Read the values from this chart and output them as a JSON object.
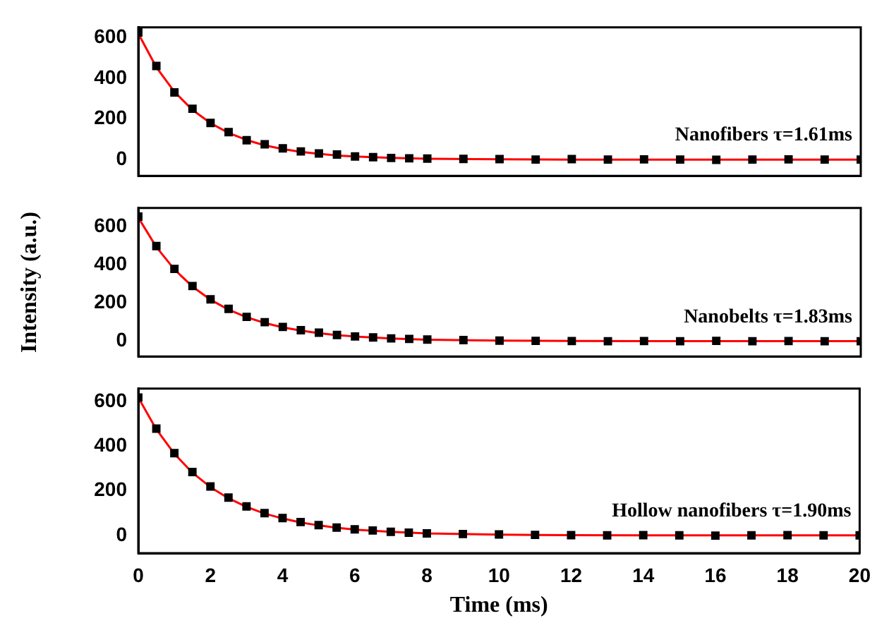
{
  "chart_data": [
    {
      "type": "scatter",
      "xlim": [
        0,
        20
      ],
      "xticks": [
        0,
        2,
        4,
        6,
        8,
        10,
        12,
        14,
        16,
        18,
        20
      ],
      "ylim": [
        -80,
        650
      ],
      "yticks": [
        0,
        200,
        400,
        600
      ],
      "tick_labels": "y",
      "annotations": [
        "Nanofibers τ=1.61ms"
      ],
      "series": [
        {
          "color": "#000000",
          "marker": "square",
          "x": [
            0,
            0.5,
            1,
            1.5,
            2,
            2.5,
            3,
            3.5,
            4,
            4.5,
            5,
            5.5,
            6,
            6.5,
            7,
            7.5,
            8,
            9,
            10,
            11,
            12,
            13,
            14,
            15,
            16,
            17,
            18,
            19,
            20
          ],
          "values": [
            625,
            460,
            330,
            250,
            180,
            135,
            95,
            75,
            55,
            40,
            30,
            25,
            15,
            12,
            8,
            6,
            5,
            3,
            2,
            0,
            2,
            0,
            1,
            0,
            -1,
            0,
            1,
            0,
            0
          ]
        },
        {
          "type": "line",
          "color": "#ff0000",
          "x": [
            0,
            0.5,
            1,
            1.5,
            2,
            2.5,
            3,
            3.5,
            4,
            4.5,
            5,
            5.5,
            6,
            7,
            8,
            10,
            12,
            14,
            16,
            18,
            20
          ],
          "values": [
            620,
            454,
            333,
            244,
            179,
            131,
            96,
            70,
            52,
            38,
            28,
            20,
            15,
            8,
            4,
            1,
            0,
            0,
            0,
            0,
            0
          ]
        }
      ]
    },
    {
      "type": "scatter",
      "xlim": [
        0,
        20
      ],
      "xticks": [
        0,
        2,
        4,
        6,
        8,
        10,
        12,
        14,
        16,
        18,
        20
      ],
      "ylim": [
        -80,
        700
      ],
      "yticks": [
        0,
        200,
        400,
        600
      ],
      "tick_labels": "y",
      "ylabel": "Intensity (a.u.)",
      "annotations": [
        "Nanobelts τ=1.83ms"
      ],
      "series": [
        {
          "color": "#000000",
          "marker": "square",
          "x": [
            0,
            0.5,
            1,
            1.5,
            2,
            2.5,
            3,
            3.5,
            4,
            4.5,
            5,
            5.5,
            6,
            6.5,
            7,
            7.5,
            8,
            9,
            10,
            11,
            12,
            13,
            14,
            15,
            16,
            17,
            18,
            19,
            20
          ],
          "values": [
            655,
            500,
            380,
            290,
            220,
            170,
            128,
            100,
            75,
            58,
            45,
            33,
            25,
            20,
            15,
            12,
            9,
            6,
            3,
            2,
            1,
            0,
            1,
            0,
            2,
            0,
            1,
            0,
            0
          ]
        },
        {
          "type": "line",
          "color": "#ff0000",
          "x": [
            0,
            0.5,
            1,
            1.5,
            2,
            2.5,
            3,
            3.5,
            4,
            4.5,
            5,
            5.5,
            6,
            7,
            8,
            10,
            12,
            14,
            16,
            18,
            20
          ],
          "values": [
            650,
            495,
            377,
            287,
            218,
            166,
            126,
            96,
            73,
            56,
            42,
            32,
            25,
            14,
            8,
            3,
            1,
            0,
            0,
            0,
            0
          ]
        }
      ]
    },
    {
      "type": "scatter",
      "xlim": [
        0,
        20
      ],
      "xticks": [
        0,
        2,
        4,
        6,
        8,
        10,
        12,
        14,
        16,
        18,
        20
      ],
      "ylim": [
        -80,
        660
      ],
      "yticks": [
        0,
        200,
        400,
        600
      ],
      "xlabel": "Time (ms)",
      "annotations": [
        "Hollow nanofibers τ=1.90ms"
      ],
      "series": [
        {
          "color": "#000000",
          "marker": "square",
          "x": [
            0,
            0.5,
            1,
            1.5,
            2,
            2.5,
            3,
            3.5,
            4,
            4.5,
            5,
            5.5,
            6,
            6.5,
            7,
            7.5,
            8,
            9,
            10,
            11,
            12,
            13,
            14,
            15,
            16,
            17,
            18,
            19,
            20
          ],
          "values": [
            620,
            480,
            370,
            285,
            220,
            170,
            130,
            100,
            78,
            60,
            46,
            35,
            27,
            22,
            16,
            12,
            9,
            6,
            4,
            2,
            1,
            0,
            1,
            0,
            -1,
            0,
            1,
            0,
            0
          ]
        },
        {
          "type": "line",
          "color": "#ff0000",
          "x": [
            0,
            0.5,
            1,
            1.5,
            2,
            2.5,
            3,
            3.5,
            4,
            4.5,
            5,
            5.5,
            6,
            7,
            8,
            10,
            12,
            14,
            16,
            18,
            20
          ],
          "values": [
            620,
            477,
            367,
            282,
            217,
            167,
            128,
            98,
            76,
            58,
            45,
            34,
            26,
            16,
            9,
            3,
            1,
            0,
            0,
            0,
            0
          ]
        }
      ]
    }
  ]
}
